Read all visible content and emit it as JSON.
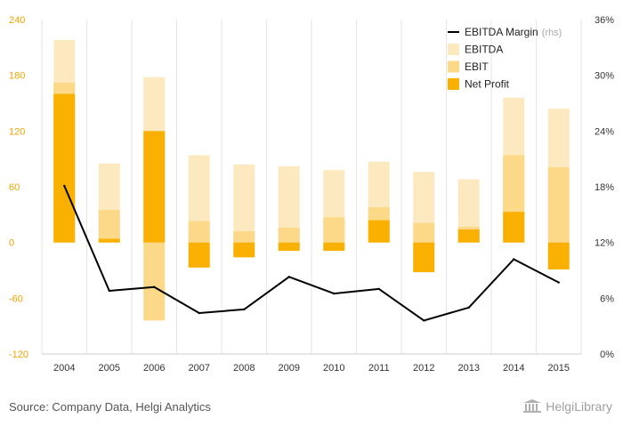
{
  "source": "Source: Company Data, Helgi Analytics",
  "logo_text": "HelgiLibrary",
  "colors": {
    "ebitda": "#fde9c0",
    "ebit": "#fcd889",
    "net_profit": "#f9b000",
    "margin": "#000000",
    "left_axis_text": "#f0a500",
    "right_axis_text": "#333333",
    "grid": "#e6e6e6"
  },
  "chart_data": {
    "type": "bar",
    "categories": [
      "2004",
      "2005",
      "2006",
      "2007",
      "2008",
      "2009",
      "2010",
      "2011",
      "2012",
      "2013",
      "2014",
      "2015"
    ],
    "series": [
      {
        "name": "EBITDA",
        "values": [
          218,
          85,
          178,
          94,
          84,
          82,
          78,
          87,
          76,
          68,
          156,
          144
        ]
      },
      {
        "name": "EBIT",
        "values": [
          172,
          35,
          -84,
          23,
          12,
          16,
          27,
          38,
          21,
          17,
          94,
          81
        ]
      },
      {
        "name": "Net Profit",
        "values": [
          160,
          4,
          120,
          -27,
          -16,
          -9,
          -9,
          24,
          -32,
          14,
          33,
          -29
        ]
      },
      {
        "name": "EBITDA Margin",
        "axis": "right",
        "values": [
          18.1,
          6.8,
          7.2,
          4.4,
          4.8,
          8.3,
          6.5,
          7.0,
          3.6,
          5.0,
          10.2,
          7.7
        ]
      }
    ],
    "legend": [
      {
        "label": "EBITDA Margin",
        "note": "(rhs)",
        "kind": "line"
      },
      {
        "label": "EBITDA",
        "kind": "bar"
      },
      {
        "label": "EBIT",
        "kind": "bar"
      },
      {
        "label": "Net Profit",
        "kind": "bar"
      }
    ],
    "legend_position": "top-right",
    "y_left": {
      "min": -120,
      "max": 240,
      "ticks": [
        -120,
        -60,
        0,
        60,
        120,
        180,
        240
      ]
    },
    "y_right": {
      "min": 0,
      "max": 36,
      "ticks": [
        "0%",
        "6%",
        "12%",
        "18%",
        "24%",
        "30%",
        "36%"
      ]
    },
    "grid": "vertical"
  }
}
